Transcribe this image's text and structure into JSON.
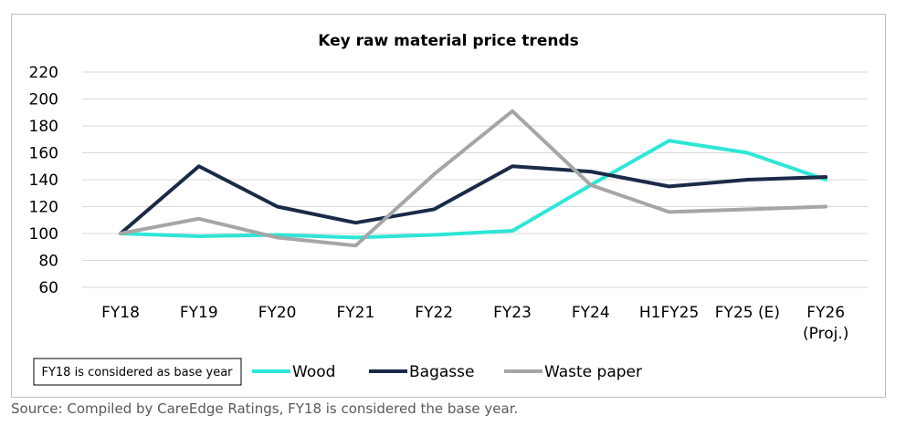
{
  "chart_data": {
    "type": "line",
    "title": "Key raw material price trends",
    "xlabel": "",
    "ylabel": "",
    "categories": [
      [
        "FY18"
      ],
      [
        "FY19"
      ],
      [
        "FY20"
      ],
      [
        "FY21"
      ],
      [
        "FY22"
      ],
      [
        "FY23"
      ],
      [
        "FY24"
      ],
      [
        "H1FY25"
      ],
      [
        "FY25 (E)"
      ],
      [
        "FY26",
        "(Proj.)"
      ]
    ],
    "yticks": [
      "60",
      "80",
      "100",
      "120",
      "140",
      "160",
      "180",
      "200",
      "220"
    ],
    "ylim": [
      60,
      220
    ],
    "grid": true,
    "legend_position": "bottom",
    "series": [
      {
        "name": "Wood",
        "color": "#2ee6d6",
        "values": [
          100,
          98,
          99,
          97,
          99,
          102,
          136,
          169,
          160,
          140
        ]
      },
      {
        "name": "Bagasse",
        "color": "#1b2a47",
        "values": [
          100,
          150,
          120,
          108,
          118,
          150,
          146,
          135,
          140,
          142
        ]
      },
      {
        "name": "Waste paper",
        "color": "#a6a6a6",
        "values": [
          100,
          111,
          97,
          91,
          144,
          191,
          136,
          116,
          118,
          120
        ]
      }
    ],
    "note": "FY18 is considered as base year"
  },
  "source": "Source: Compiled by CareEdge Ratings, FY18 is considered the base year.",
  "colors": {
    "grid": "#d9d9d9",
    "frame": "#bfbfbf",
    "source_text": "#595959"
  }
}
